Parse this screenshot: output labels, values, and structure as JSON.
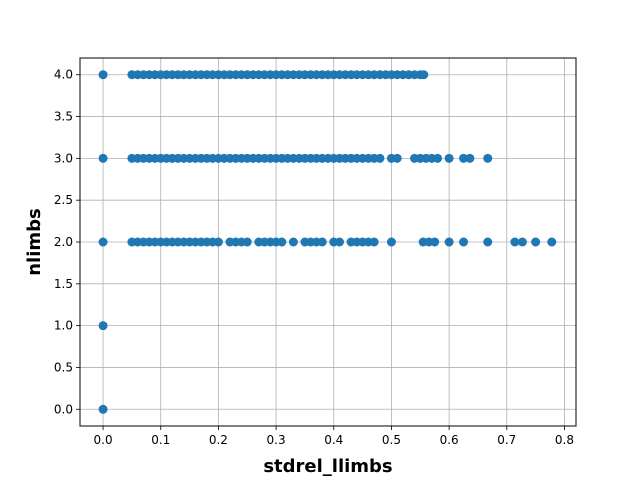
{
  "chart_data": {
    "type": "scatter",
    "title": "",
    "xlabel": "stdrel_llimbs",
    "ylabel": "nlimbs",
    "xlim": [
      -0.04,
      0.82
    ],
    "ylim": [
      -0.2,
      4.2
    ],
    "xticks": [
      0.0,
      0.1,
      0.2,
      0.3,
      0.4,
      0.5,
      0.6,
      0.7,
      0.8
    ],
    "yticks": [
      0.0,
      0.5,
      1.0,
      1.5,
      2.0,
      2.5,
      3.0,
      3.5,
      4.0
    ],
    "xtick_labels": [
      "0.0",
      "0.1",
      "0.2",
      "0.3",
      "0.4",
      "0.5",
      "0.6",
      "0.7",
      "0.8"
    ],
    "ytick_labels": [
      "0.0",
      "0.5",
      "1.0",
      "1.5",
      "2.0",
      "2.5",
      "3.0",
      "3.5",
      "4.0"
    ],
    "grid": true,
    "marker_color": "#1f77b4",
    "series": [
      {
        "points": [
          [
            0.0,
            0.0
          ],
          [
            0.0,
            1.0
          ],
          [
            0.0,
            2.0
          ],
          [
            0.0,
            3.0
          ],
          [
            0.0,
            4.0
          ],
          [
            0.05,
            2.0
          ],
          [
            0.06,
            2.0
          ],
          [
            0.07,
            2.0
          ],
          [
            0.08,
            2.0
          ],
          [
            0.09,
            2.0
          ],
          [
            0.1,
            2.0
          ],
          [
            0.11,
            2.0
          ],
          [
            0.12,
            2.0
          ],
          [
            0.13,
            2.0
          ],
          [
            0.14,
            2.0
          ],
          [
            0.15,
            2.0
          ],
          [
            0.16,
            2.0
          ],
          [
            0.17,
            2.0
          ],
          [
            0.18,
            2.0
          ],
          [
            0.19,
            2.0
          ],
          [
            0.2,
            2.0
          ],
          [
            0.22,
            2.0
          ],
          [
            0.23,
            2.0
          ],
          [
            0.24,
            2.0
          ],
          [
            0.25,
            2.0
          ],
          [
            0.27,
            2.0
          ],
          [
            0.28,
            2.0
          ],
          [
            0.29,
            2.0
          ],
          [
            0.3,
            2.0
          ],
          [
            0.31,
            2.0
          ],
          [
            0.33,
            2.0
          ],
          [
            0.35,
            2.0
          ],
          [
            0.36,
            2.0
          ],
          [
            0.37,
            2.0
          ],
          [
            0.38,
            2.0
          ],
          [
            0.4,
            2.0
          ],
          [
            0.41,
            2.0
          ],
          [
            0.43,
            2.0
          ],
          [
            0.44,
            2.0
          ],
          [
            0.45,
            2.0
          ],
          [
            0.46,
            2.0
          ],
          [
            0.47,
            2.0
          ],
          [
            0.5,
            2.0
          ],
          [
            0.555,
            2.0
          ],
          [
            0.565,
            2.0
          ],
          [
            0.575,
            2.0
          ],
          [
            0.6,
            2.0
          ],
          [
            0.625,
            2.0
          ],
          [
            0.667,
            2.0
          ],
          [
            0.714,
            2.0
          ],
          [
            0.727,
            2.0
          ],
          [
            0.75,
            2.0
          ],
          [
            0.778,
            2.0
          ],
          [
            0.05,
            3.0
          ],
          [
            0.06,
            3.0
          ],
          [
            0.07,
            3.0
          ],
          [
            0.08,
            3.0
          ],
          [
            0.09,
            3.0
          ],
          [
            0.1,
            3.0
          ],
          [
            0.11,
            3.0
          ],
          [
            0.12,
            3.0
          ],
          [
            0.13,
            3.0
          ],
          [
            0.14,
            3.0
          ],
          [
            0.15,
            3.0
          ],
          [
            0.16,
            3.0
          ],
          [
            0.17,
            3.0
          ],
          [
            0.18,
            3.0
          ],
          [
            0.19,
            3.0
          ],
          [
            0.2,
            3.0
          ],
          [
            0.21,
            3.0
          ],
          [
            0.22,
            3.0
          ],
          [
            0.23,
            3.0
          ],
          [
            0.24,
            3.0
          ],
          [
            0.25,
            3.0
          ],
          [
            0.26,
            3.0
          ],
          [
            0.27,
            3.0
          ],
          [
            0.28,
            3.0
          ],
          [
            0.29,
            3.0
          ],
          [
            0.3,
            3.0
          ],
          [
            0.31,
            3.0
          ],
          [
            0.32,
            3.0
          ],
          [
            0.33,
            3.0
          ],
          [
            0.34,
            3.0
          ],
          [
            0.35,
            3.0
          ],
          [
            0.36,
            3.0
          ],
          [
            0.37,
            3.0
          ],
          [
            0.38,
            3.0
          ],
          [
            0.39,
            3.0
          ],
          [
            0.4,
            3.0
          ],
          [
            0.41,
            3.0
          ],
          [
            0.42,
            3.0
          ],
          [
            0.43,
            3.0
          ],
          [
            0.44,
            3.0
          ],
          [
            0.45,
            3.0
          ],
          [
            0.46,
            3.0
          ],
          [
            0.47,
            3.0
          ],
          [
            0.48,
            3.0
          ],
          [
            0.5,
            3.0
          ],
          [
            0.51,
            3.0
          ],
          [
            0.54,
            3.0
          ],
          [
            0.55,
            3.0
          ],
          [
            0.56,
            3.0
          ],
          [
            0.57,
            3.0
          ],
          [
            0.58,
            3.0
          ],
          [
            0.6,
            3.0
          ],
          [
            0.625,
            3.0
          ],
          [
            0.636,
            3.0
          ],
          [
            0.667,
            3.0
          ],
          [
            0.05,
            4.0
          ],
          [
            0.06,
            4.0
          ],
          [
            0.07,
            4.0
          ],
          [
            0.08,
            4.0
          ],
          [
            0.09,
            4.0
          ],
          [
            0.1,
            4.0
          ],
          [
            0.11,
            4.0
          ],
          [
            0.12,
            4.0
          ],
          [
            0.13,
            4.0
          ],
          [
            0.14,
            4.0
          ],
          [
            0.15,
            4.0
          ],
          [
            0.16,
            4.0
          ],
          [
            0.17,
            4.0
          ],
          [
            0.18,
            4.0
          ],
          [
            0.19,
            4.0
          ],
          [
            0.2,
            4.0
          ],
          [
            0.21,
            4.0
          ],
          [
            0.22,
            4.0
          ],
          [
            0.23,
            4.0
          ],
          [
            0.24,
            4.0
          ],
          [
            0.25,
            4.0
          ],
          [
            0.26,
            4.0
          ],
          [
            0.27,
            4.0
          ],
          [
            0.28,
            4.0
          ],
          [
            0.29,
            4.0
          ],
          [
            0.3,
            4.0
          ],
          [
            0.31,
            4.0
          ],
          [
            0.32,
            4.0
          ],
          [
            0.33,
            4.0
          ],
          [
            0.34,
            4.0
          ],
          [
            0.35,
            4.0
          ],
          [
            0.36,
            4.0
          ],
          [
            0.37,
            4.0
          ],
          [
            0.38,
            4.0
          ],
          [
            0.39,
            4.0
          ],
          [
            0.4,
            4.0
          ],
          [
            0.41,
            4.0
          ],
          [
            0.42,
            4.0
          ],
          [
            0.43,
            4.0
          ],
          [
            0.44,
            4.0
          ],
          [
            0.45,
            4.0
          ],
          [
            0.46,
            4.0
          ],
          [
            0.47,
            4.0
          ],
          [
            0.48,
            4.0
          ],
          [
            0.49,
            4.0
          ],
          [
            0.5,
            4.0
          ],
          [
            0.51,
            4.0
          ],
          [
            0.52,
            4.0
          ],
          [
            0.53,
            4.0
          ],
          [
            0.54,
            4.0
          ],
          [
            0.55,
            4.0
          ],
          [
            0.556,
            4.0
          ]
        ]
      }
    ]
  }
}
